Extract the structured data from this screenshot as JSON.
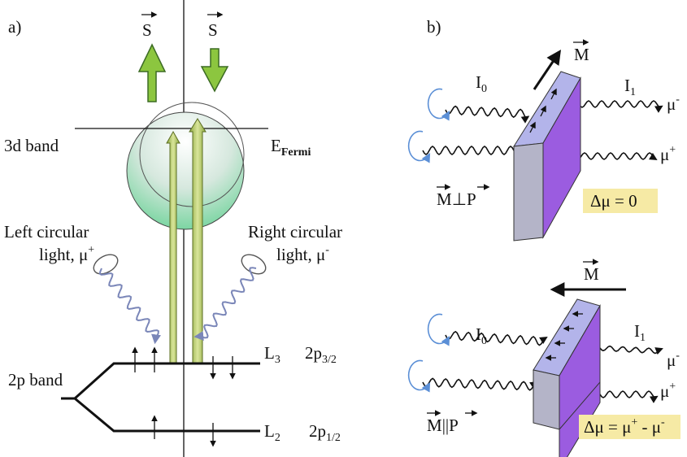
{
  "panel_a": {
    "label": "a)",
    "spin_up": "S",
    "spin_down": "S",
    "band_3d": "3d band",
    "fermi": {
      "base": "E",
      "sub": "Fermi"
    },
    "left_light": {
      "line1": "Left circular",
      "line2": "light, μ",
      "sup": "+"
    },
    "right_light": {
      "line1": "Right circular",
      "line2": "light, μ",
      "sup": "-"
    },
    "band_2p": "2p band",
    "l3": {
      "base": "L",
      "sub": "3"
    },
    "p32": {
      "base": "2p",
      "sub": "3/2"
    },
    "l2": {
      "base": "L",
      "sub": "2"
    },
    "p12": {
      "base": "2p",
      "sub": "1/2"
    }
  },
  "panel_b": {
    "label": "b)",
    "top": {
      "m": "M",
      "i0": {
        "base": "I",
        "sub": "0"
      },
      "i1": {
        "base": "I",
        "sub": "1"
      },
      "mu_minus": {
        "base": "μ",
        "sup": "-"
      },
      "mu_plus": {
        "base": "μ",
        "sup": "+"
      },
      "relation": {
        "m": "M",
        "sym": "⊥",
        "p": "P"
      },
      "delta": "Δμ = 0"
    },
    "bottom": {
      "m": "M",
      "i0": {
        "base": "I",
        "sub": "0"
      },
      "i1": {
        "base": "I",
        "sub": "1"
      },
      "mu_minus": {
        "base": "μ",
        "sup": "-"
      },
      "mu_plus": {
        "base": "μ",
        "sup": "+"
      },
      "relation": {
        "m": "M",
        "sym": "||",
        "p": "P"
      },
      "delta": {
        "base": "Δμ = μ",
        "sup1": "+",
        "mid": " - μ",
        "sup2": "-"
      }
    }
  }
}
